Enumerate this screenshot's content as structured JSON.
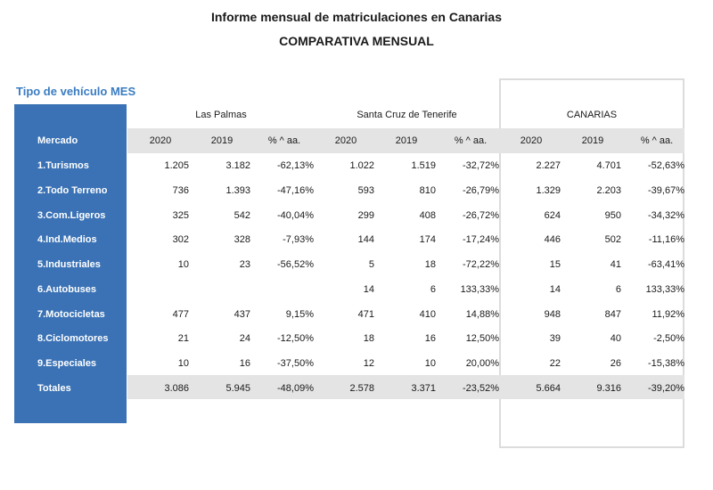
{
  "title": "Informe mensual de matriculaciones en Canarias",
  "subtitle": "COMPARATIVA MENSUAL",
  "section_label": "Tipo de vehículo MES",
  "regions": [
    "Las Palmas",
    "Santa Cruz de Tenerife",
    "CANARIAS"
  ],
  "header": [
    "Mercado",
    "2020",
    "2019",
    "% ^ aa.",
    "2020",
    "2019",
    "% ^ aa.",
    "2020",
    "2019",
    "% ^ aa."
  ],
  "rows": [
    [
      "1.Turismos",
      "1.205",
      "3.182",
      "-62,13%",
      "1.022",
      "1.519",
      "-32,72%",
      "2.227",
      "4.701",
      "-52,63%"
    ],
    [
      "2.Todo Terreno",
      "736",
      "1.393",
      "-47,16%",
      "593",
      "810",
      "-26,79%",
      "1.329",
      "2.203",
      "-39,67%"
    ],
    [
      "3.Com.Ligeros",
      "325",
      "542",
      "-40,04%",
      "299",
      "408",
      "-26,72%",
      "624",
      "950",
      "-34,32%"
    ],
    [
      "4.Ind.Medios",
      "302",
      "328",
      "-7,93%",
      "144",
      "174",
      "-17,24%",
      "446",
      "502",
      "-11,16%"
    ],
    [
      "5.Industriales",
      "10",
      "23",
      "-56,52%",
      "5",
      "18",
      "-72,22%",
      "15",
      "41",
      "-63,41%"
    ],
    [
      "6.Autobuses",
      "",
      "",
      "",
      "14",
      "6",
      "133,33%",
      "14",
      "6",
      "133,33%"
    ],
    [
      "7.Motocicletas",
      "477",
      "437",
      "9,15%",
      "471",
      "410",
      "14,88%",
      "948",
      "847",
      "11,92%"
    ],
    [
      "8.Ciclomotores",
      "21",
      "24",
      "-12,50%",
      "18",
      "16",
      "12,50%",
      "39",
      "40",
      "-2,50%"
    ],
    [
      "9.Especiales",
      "10",
      "16",
      "-37,50%",
      "12",
      "10",
      "20,00%",
      "22",
      "26",
      "-15,38%"
    ],
    [
      "Totales",
      "3.086",
      "5.945",
      "-48,09%",
      "2.578",
      "3.371",
      "-23,52%",
      "5.664",
      "9.316",
      "-39,20%"
    ]
  ],
  "colors": {
    "sidebar_blue": "#3a72b5",
    "section_label": "#3a7cc2",
    "band_gray": "#e4e4e4"
  }
}
